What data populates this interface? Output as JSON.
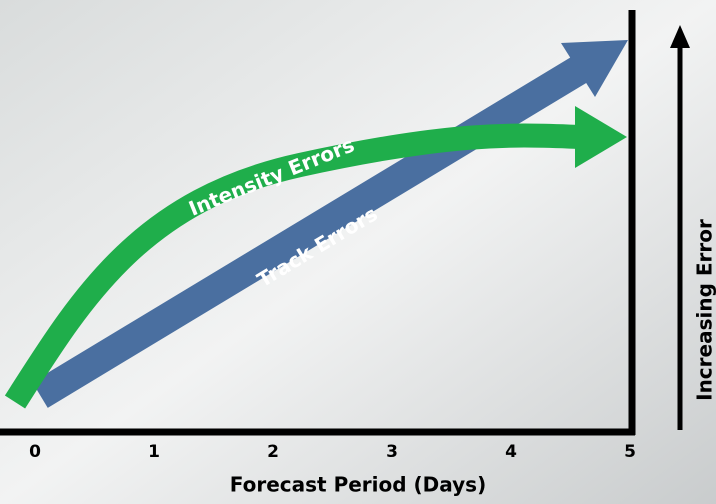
{
  "x_axis": {
    "label": "Forecast Period (Days)",
    "ticks": [
      "0",
      "1",
      "2",
      "3",
      "4",
      "5"
    ]
  },
  "y_axis": {
    "label": "Increasing Error"
  },
  "arrows": [
    {
      "label": "Intensity Errors"
    },
    {
      "label": "Track Errors"
    }
  ]
}
